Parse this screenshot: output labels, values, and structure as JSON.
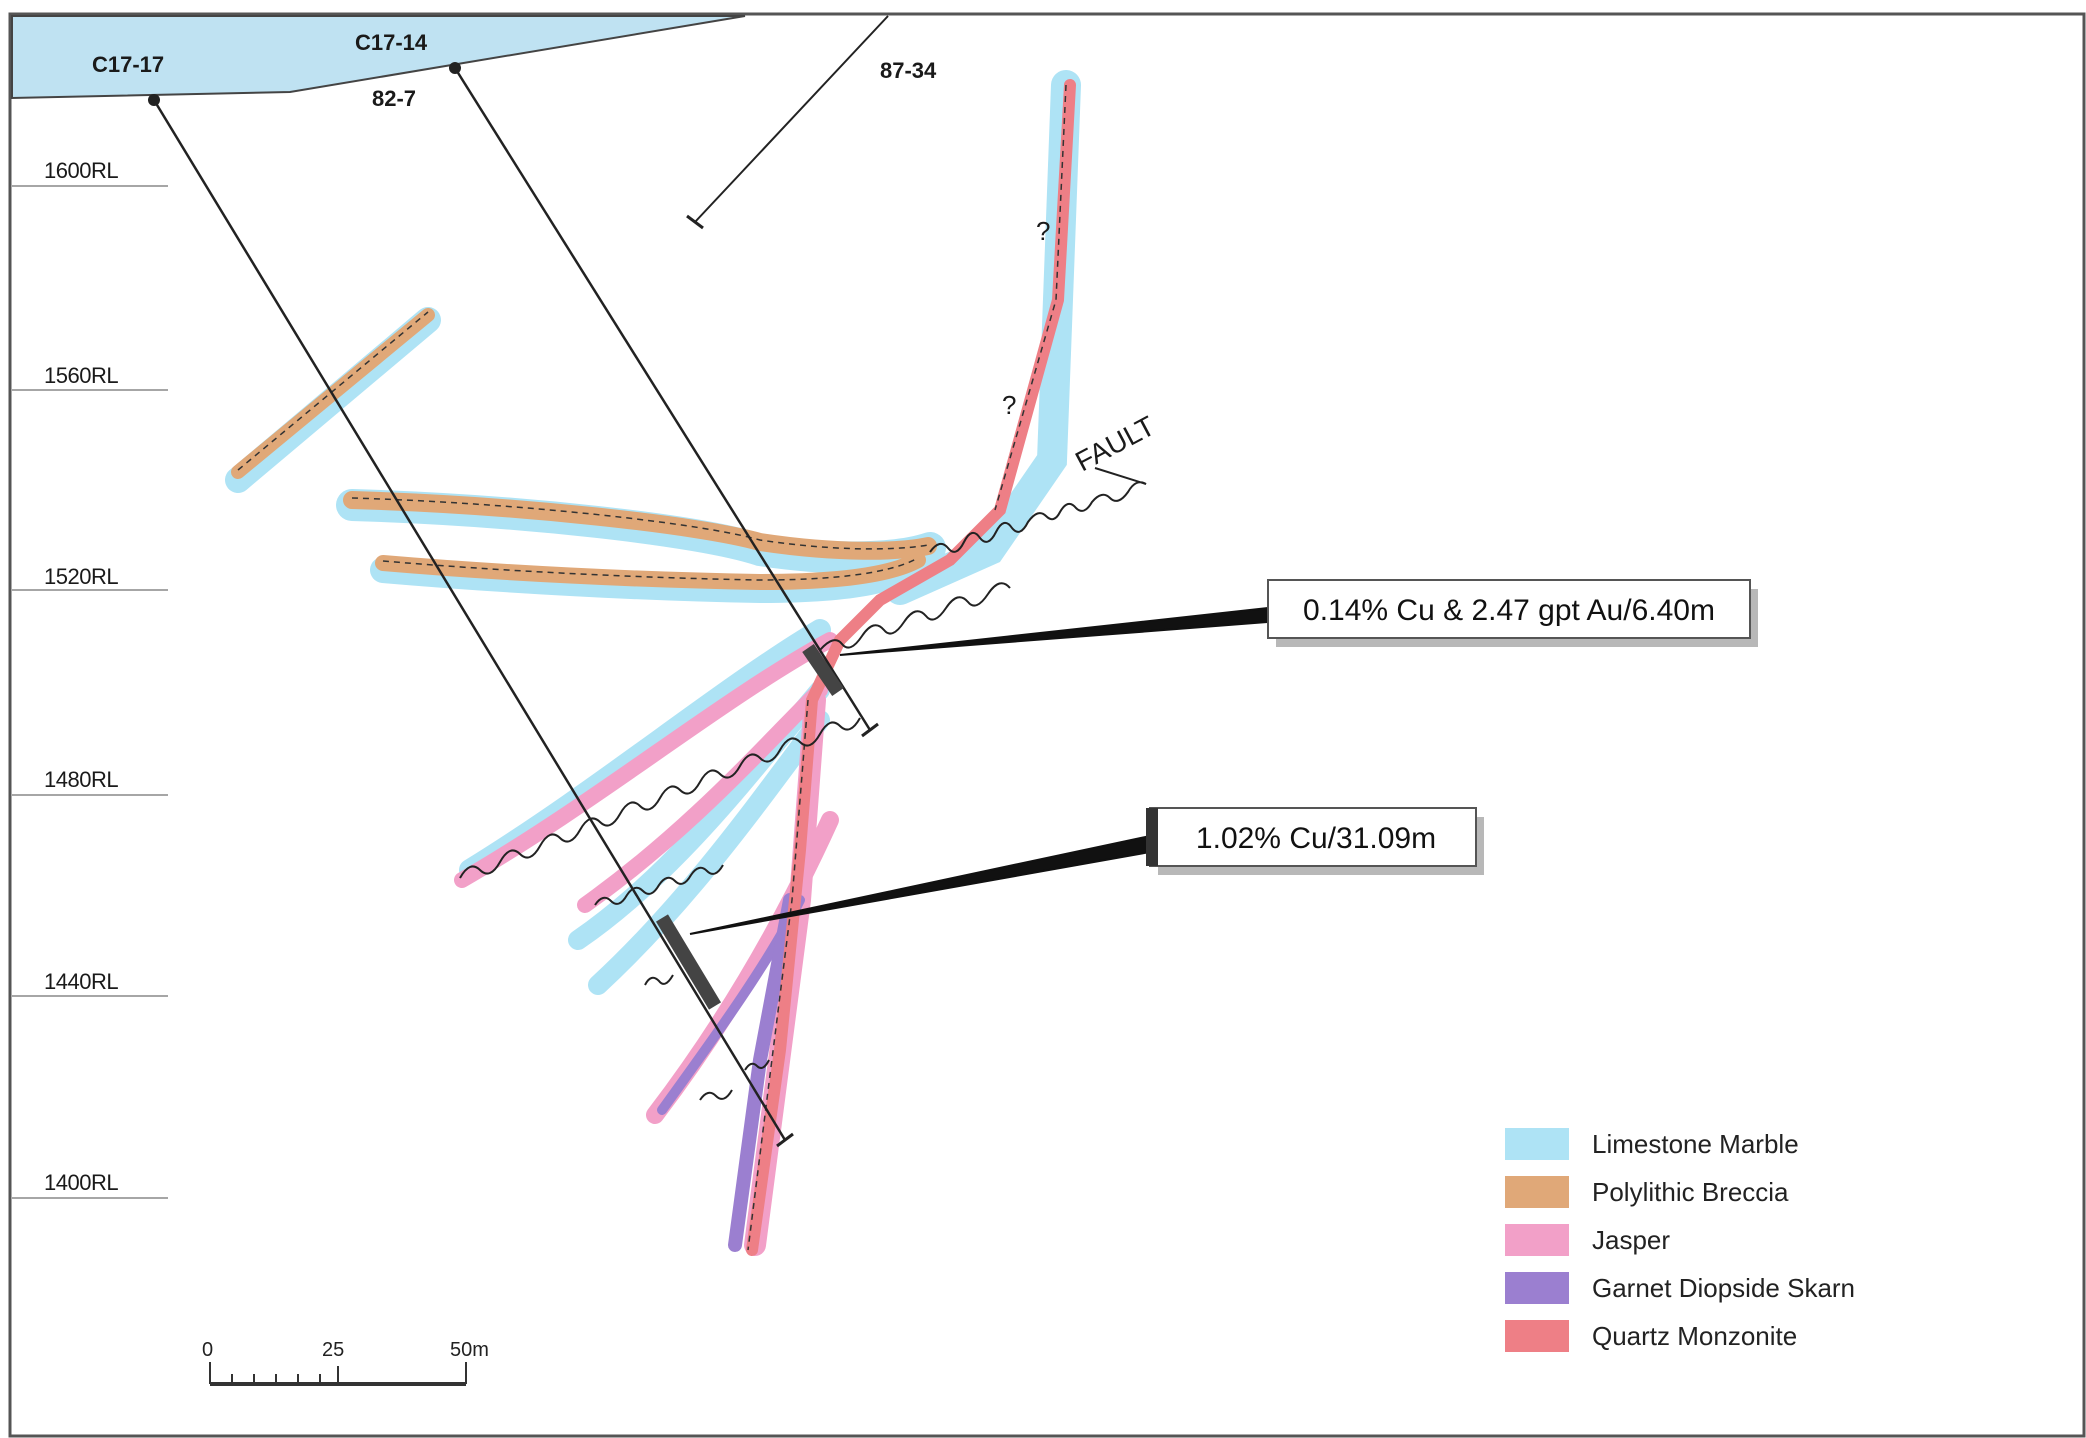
{
  "drillholes": {
    "c17_17": "C17-17",
    "c17_14": "C17-14",
    "h82_7": "82-7",
    "h87_34": "87-34"
  },
  "elevations": [
    "1600RL",
    "1560RL",
    "1520RL",
    "1480RL",
    "1440RL",
    "1400RL"
  ],
  "fault_label": "FAULT",
  "query_marks": [
    "?",
    "?"
  ],
  "callouts": {
    "upper": "0.14% Cu & 2.47 gpt Au/6.40m",
    "lower": "1.02% Cu/31.09m"
  },
  "legend": [
    {
      "label": "Limestone Marble",
      "color": "#aee3f5"
    },
    {
      "label": "Polylithic Breccia",
      "color": "#e0a878"
    },
    {
      "label": "Jasper",
      "color": "#f2a0c8"
    },
    {
      "label": "Garnet Diopside Skarn",
      "color": "#9b7fd0"
    },
    {
      "label": "Quartz Monzonite",
      "color": "#ee7f86"
    }
  ],
  "scale": {
    "ticks": [
      "0",
      "25",
      "50m"
    ]
  },
  "colors": {
    "surface": "#bfe2f2",
    "limestone": "#aee3f5",
    "breccia": "#e0a878",
    "jasper": "#f2a0c8",
    "skarn": "#9b7fd0",
    "monzonite": "#ee7f86"
  }
}
